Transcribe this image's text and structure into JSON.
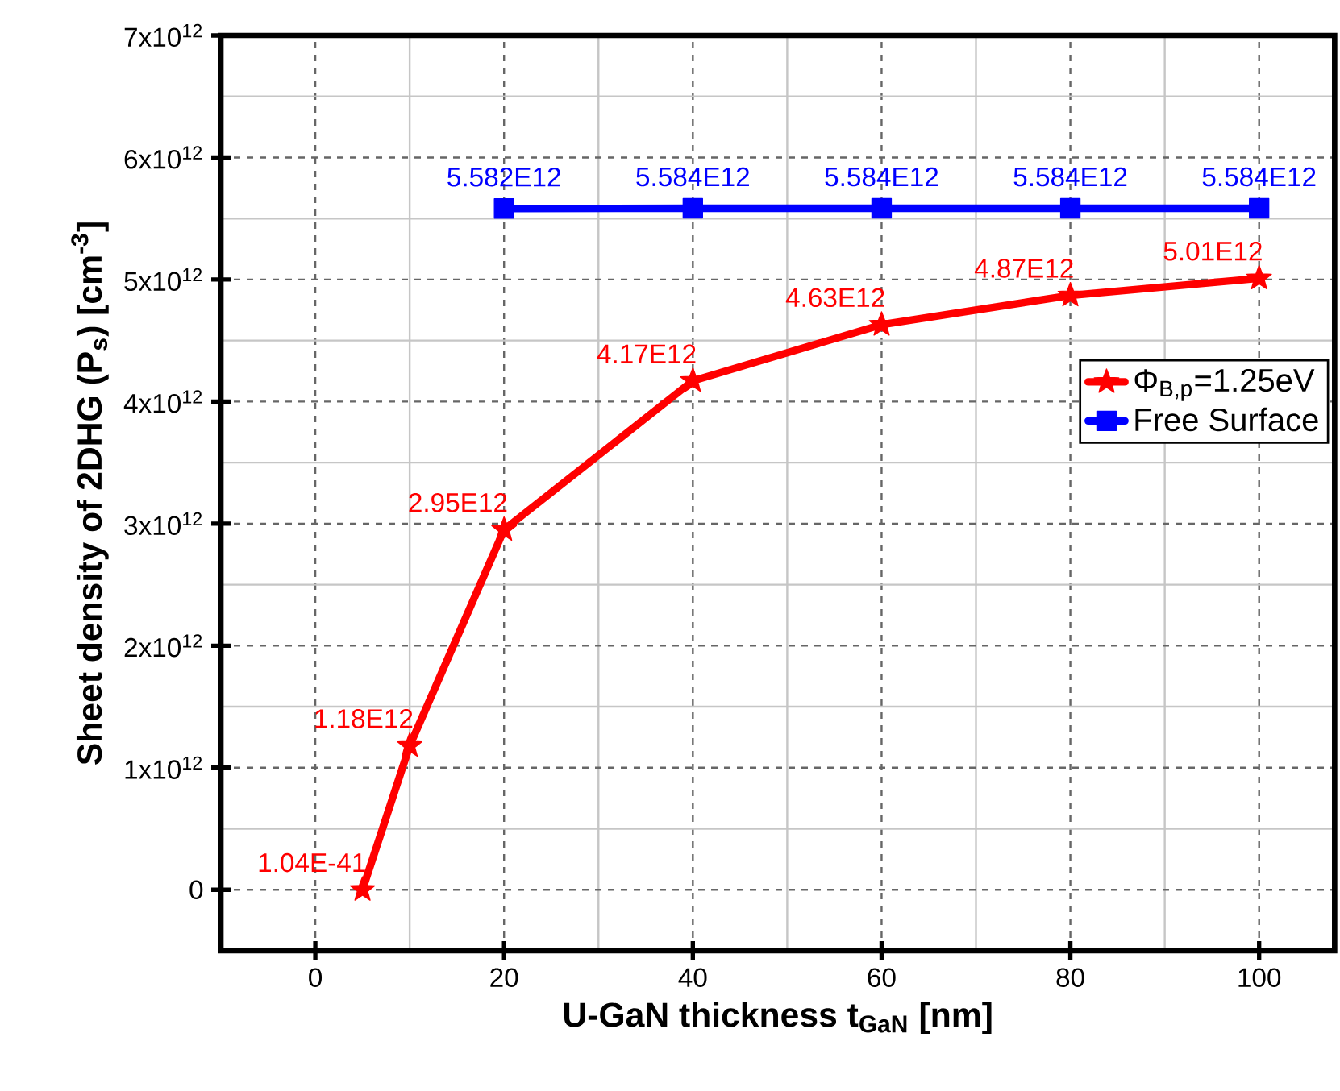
{
  "chart_data": {
    "type": "line",
    "xlabel": "U-GaN thickness t$_{GaN}$ [nm]",
    "ylabel": "Sheet density of 2DHG (P$_{s}$) [cm$^{-3}$]",
    "xlim": [
      -10,
      108
    ],
    "ylim": [
      -500000000000.0,
      7000000000000.0
    ],
    "xticks": [
      0,
      20,
      40,
      60,
      80,
      100
    ],
    "yticks": [
      0,
      {
        "value": 1000000000000.0,
        "label": "1x10$^{12}$"
      },
      {
        "value": 2000000000000.0,
        "label": "2x10$^{12}$"
      },
      {
        "value": 3000000000000.0,
        "label": "3x10$^{12}$"
      },
      {
        "value": 4000000000000.0,
        "label": "4x10$^{12}$"
      },
      {
        "value": 5000000000000.0,
        "label": "5x10$^{12}$"
      },
      {
        "value": 6000000000000.0,
        "label": "6x10$^{12}$"
      },
      {
        "value": 7000000000000.0,
        "label": "7x10$^{12}$"
      }
    ],
    "grid": true,
    "legend": "right",
    "line_style": "solid",
    "series": [
      {
        "name": "Φ$_{B,p}$=1.25eV",
        "color": "#ff0000",
        "marker": "star",
        "x": [
          5,
          10,
          20,
          40,
          60,
          80,
          100
        ],
        "values": [
          1.04e-41,
          1180000000000.0,
          2950000000000.0,
          4170000000000.0,
          4630000000000.0,
          4870000000000.0,
          5010000000000.0
        ],
        "value_labels": [
          "1.04E-41",
          "1.18E12",
          "2.95E12",
          "4.17E12",
          "4.63E12",
          "4.87E12",
          "5.01E12"
        ]
      },
      {
        "name": "Free Surface",
        "color": "#0000ff",
        "marker": "square",
        "x": [
          20,
          40,
          60,
          80,
          100
        ],
        "values": [
          5582000000000.0,
          5584000000000.0,
          5584000000000.0,
          5584000000000.0,
          5584000000000.0
        ],
        "value_labels": [
          "5.582E12",
          "5.584E12",
          "5.584E12",
          "5.584E12",
          "5.584E12"
        ]
      }
    ]
  }
}
